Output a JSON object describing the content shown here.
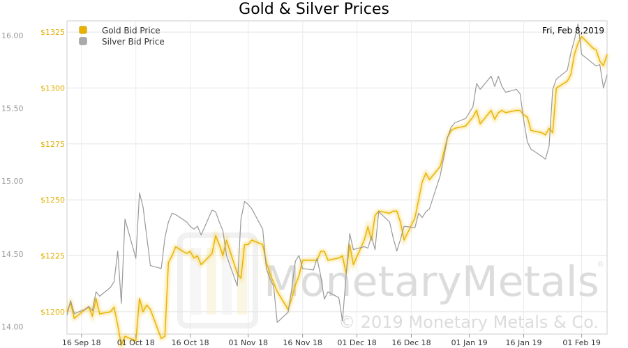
{
  "chart_data": {
    "type": "line",
    "title": "Gold & Silver Prices",
    "date_label": "Fri, Feb 8,2019",
    "x_tick_labels": [
      "16 Sep 18",
      "01 Oct 18",
      "16 Oct 18",
      "01 Nov 18",
      "16 Nov 18",
      "01 Dec 18",
      "16 Dec 18",
      "01 Jan 19",
      "16 Jan 19",
      "01 Feb 19"
    ],
    "x_range": [
      "2018-09-12",
      "2019-02-08"
    ],
    "gold_axis": {
      "ticks": [
        "$1200",
        "$1225",
        "$1250",
        "$1275",
        "$1300",
        "$1325"
      ],
      "range": [
        1190,
        1330
      ]
    },
    "silver_axis": {
      "ticks": [
        "14.00",
        "14.50",
        "15.00",
        "15.50",
        "16.00"
      ],
      "range": [
        13.95,
        16.1
      ]
    },
    "grid": true,
    "legend_position": "top-left",
    "colors": {
      "gold": "#e8b300",
      "silver": "#999999"
    },
    "series": [
      {
        "name": "Gold Bid Price",
        "axis": "gold",
        "x": [
          "2018-09-12",
          "2018-09-13",
          "2018-09-14",
          "2018-09-17",
          "2018-09-18",
          "2018-09-19",
          "2018-09-20",
          "2018-09-21",
          "2018-09-24",
          "2018-09-25",
          "2018-09-26",
          "2018-09-27",
          "2018-09-28",
          "2018-10-01",
          "2018-10-02",
          "2018-10-03",
          "2018-10-04",
          "2018-10-05",
          "2018-10-08",
          "2018-10-09",
          "2018-10-10",
          "2018-10-11",
          "2018-10-12",
          "2018-10-15",
          "2018-10-16",
          "2018-10-17",
          "2018-10-18",
          "2018-10-19",
          "2018-10-22",
          "2018-10-23",
          "2018-10-24",
          "2018-10-25",
          "2018-10-26",
          "2018-10-29",
          "2018-10-30",
          "2018-10-31",
          "2018-11-01",
          "2018-11-02",
          "2018-11-05",
          "2018-11-06",
          "2018-11-07",
          "2018-11-08",
          "2018-11-09",
          "2018-11-12",
          "2018-11-13",
          "2018-11-14",
          "2018-11-15",
          "2018-11-16",
          "2018-11-19",
          "2018-11-20",
          "2018-11-21",
          "2018-11-22",
          "2018-11-23",
          "2018-11-26",
          "2018-11-27",
          "2018-11-28",
          "2018-11-29",
          "2018-11-30",
          "2018-12-03",
          "2018-12-04",
          "2018-12-05",
          "2018-12-06",
          "2018-12-07",
          "2018-12-10",
          "2018-12-11",
          "2018-12-12",
          "2018-12-13",
          "2018-12-14",
          "2018-12-17",
          "2018-12-18",
          "2018-12-19",
          "2018-12-20",
          "2018-12-21",
          "2018-12-24",
          "2018-12-26",
          "2018-12-27",
          "2018-12-28",
          "2018-12-31",
          "2019-01-02",
          "2019-01-03",
          "2019-01-04",
          "2019-01-07",
          "2019-01-08",
          "2019-01-09",
          "2019-01-10",
          "2019-01-11",
          "2019-01-14",
          "2019-01-15",
          "2019-01-16",
          "2019-01-17",
          "2019-01-18",
          "2019-01-21",
          "2019-01-22",
          "2019-01-23",
          "2019-01-24",
          "2019-01-25",
          "2019-01-28",
          "2019-01-29",
          "2019-01-30",
          "2019-01-31",
          "2019-02-01",
          "2019-02-04",
          "2019-02-05",
          "2019-02-06",
          "2019-02-07",
          "2019-02-08"
        ],
        "values": [
          1200,
          1204,
          1197,
          1201,
          1202,
          1198,
          1206,
          1199,
          1200,
          1202,
          1194,
          1185,
          1189,
          1187,
          1206,
          1200,
          1203,
          1201,
          1188,
          1189,
          1222,
          1225,
          1229,
          1226,
          1227,
          1224,
          1225,
          1221,
          1226,
          1234,
          1230,
          1225,
          1232,
          1217,
          1215,
          1230,
          1230,
          1232,
          1230,
          1222,
          1217,
          1213,
          1209,
          1201,
          1206,
          1212,
          1216,
          1223,
          1223,
          1223,
          1227,
          1227,
          1223,
          1224,
          1225,
          1217,
          1230,
          1221,
          1232,
          1238,
          1232,
          1243,
          1245,
          1244,
          1245,
          1245,
          1240,
          1232,
          1242,
          1250,
          1258,
          1262,
          1259,
          1265,
          1278,
          1281,
          1282,
          1283,
          1287,
          1290,
          1284,
          1290,
          1286,
          1289,
          1290,
          1289,
          1290,
          1290,
          1288,
          1287,
          1281,
          1280,
          1279,
          1282,
          1280,
          1300,
          1303,
          1306,
          1315,
          1320,
          1323,
          1318,
          1317,
          1312,
          1310,
          1315
        ]
      },
      {
        "name": "Silver Bid Price",
        "axis": "silver",
        "x": [
          "2018-09-12",
          "2018-09-13",
          "2018-09-14",
          "2018-09-17",
          "2018-09-18",
          "2018-09-19",
          "2018-09-20",
          "2018-09-21",
          "2018-09-24",
          "2018-09-25",
          "2018-09-26",
          "2018-09-27",
          "2018-09-28",
          "2018-10-01",
          "2018-10-02",
          "2018-10-03",
          "2018-10-04",
          "2018-10-05",
          "2018-10-08",
          "2018-10-09",
          "2018-10-10",
          "2018-10-11",
          "2018-10-12",
          "2018-10-15",
          "2018-10-16",
          "2018-10-17",
          "2018-10-18",
          "2018-10-19",
          "2018-10-22",
          "2018-10-23",
          "2018-10-24",
          "2018-10-25",
          "2018-10-26",
          "2018-10-29",
          "2018-10-30",
          "2018-10-31",
          "2018-11-01",
          "2018-11-02",
          "2018-11-05",
          "2018-11-06",
          "2018-11-07",
          "2018-11-08",
          "2018-11-09",
          "2018-11-12",
          "2018-11-13",
          "2018-11-14",
          "2018-11-15",
          "2018-11-16",
          "2018-11-19",
          "2018-11-20",
          "2018-11-21",
          "2018-11-22",
          "2018-11-23",
          "2018-11-26",
          "2018-11-27",
          "2018-11-28",
          "2018-11-29",
          "2018-11-30",
          "2018-12-03",
          "2018-12-04",
          "2018-12-05",
          "2018-12-06",
          "2018-12-07",
          "2018-12-10",
          "2018-12-11",
          "2018-12-12",
          "2018-12-13",
          "2018-12-14",
          "2018-12-17",
          "2018-12-18",
          "2018-12-19",
          "2018-12-20",
          "2018-12-21",
          "2018-12-24",
          "2018-12-26",
          "2018-12-27",
          "2018-12-28",
          "2018-12-31",
          "2019-01-02",
          "2019-01-03",
          "2019-01-04",
          "2019-01-07",
          "2019-01-08",
          "2019-01-09",
          "2019-01-10",
          "2019-01-11",
          "2019-01-14",
          "2019-01-15",
          "2019-01-16",
          "2019-01-17",
          "2019-01-18",
          "2019-01-21",
          "2019-01-22",
          "2019-01-23",
          "2019-01-24",
          "2019-01-25",
          "2019-01-28",
          "2019-01-29",
          "2019-01-30",
          "2019-01-31",
          "2019-02-01",
          "2019-02-04",
          "2019-02-05",
          "2019-02-06",
          "2019-02-07",
          "2019-02-08"
        ],
        "values": [
          14.08,
          14.18,
          14.09,
          14.12,
          14.14,
          14.11,
          14.24,
          14.21,
          14.27,
          14.31,
          14.52,
          14.16,
          14.74,
          14.47,
          14.92,
          14.82,
          14.62,
          14.42,
          14.4,
          14.61,
          14.72,
          14.78,
          14.77,
          14.72,
          14.69,
          14.67,
          14.69,
          14.63,
          14.8,
          14.79,
          14.72,
          14.66,
          14.49,
          14.28,
          14.74,
          14.86,
          14.84,
          14.81,
          14.67,
          14.4,
          14.33,
          14.28,
          14.03,
          14.1,
          14.26,
          14.45,
          14.49,
          14.4,
          14.39,
          14.47,
          14.35,
          14.19,
          14.24,
          14.2,
          14.04,
          14.35,
          14.64,
          14.53,
          14.55,
          14.54,
          14.62,
          14.53,
          14.79,
          14.72,
          14.61,
          14.52,
          14.6,
          14.69,
          14.68,
          14.78,
          14.75,
          14.79,
          14.81,
          15.04,
          15.3,
          15.37,
          15.4,
          15.43,
          15.51,
          15.67,
          15.63,
          15.72,
          15.65,
          15.72,
          15.65,
          15.61,
          15.63,
          15.6,
          15.42,
          15.27,
          15.22,
          15.17,
          15.15,
          15.24,
          15.63,
          15.7,
          15.76,
          15.88,
          15.97,
          16.08,
          15.87,
          15.81,
          15.79,
          15.8,
          15.64,
          15.73
        ]
      }
    ]
  },
  "watermark": {
    "brand": "MonetaryMetals",
    "copyright": "© 2019 Monetary Metals & Co.",
    "registered": "®"
  }
}
